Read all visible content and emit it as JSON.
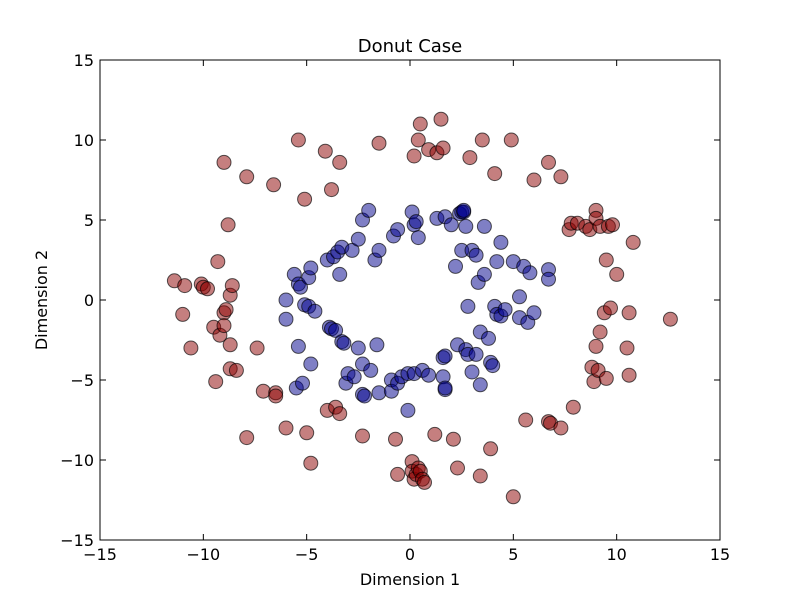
{
  "chart_data": {
    "type": "scatter",
    "title": "Donut Case",
    "xlabel": "Dimension 1",
    "ylabel": "Dimension 2",
    "xlim": [
      -15,
      15
    ],
    "ylim": [
      -15,
      15
    ],
    "xticks": [
      -15,
      -10,
      -5,
      0,
      5,
      10,
      15
    ],
    "yticks": [
      -15,
      -10,
      -5,
      0,
      5,
      10,
      15
    ],
    "xtick_labels": [
      "−15",
      "−10",
      "−5",
      "0",
      "5",
      "10",
      "15"
    ],
    "ytick_labels": [
      "−15",
      "−10",
      "−5",
      "0",
      "5",
      "10",
      "15"
    ],
    "grid": false,
    "series": [
      {
        "color": "#8b0000",
        "points": [
          [
            -11.4,
            1.2
          ],
          [
            -10.9,
            0.9
          ],
          [
            -11.0,
            -0.9
          ],
          [
            -10.6,
            -3.0
          ],
          [
            -10.1,
            1.0
          ],
          [
            -10.0,
            0.8
          ],
          [
            -9.8,
            0.7
          ],
          [
            -9.5,
            -1.7
          ],
          [
            -9.4,
            -5.1
          ],
          [
            -9.3,
            2.4
          ],
          [
            -9.2,
            -2.2
          ],
          [
            -9.0,
            -0.8
          ],
          [
            -9.0,
            -1.6
          ],
          [
            -8.9,
            -0.6
          ],
          [
            -8.8,
            4.7
          ],
          [
            -8.7,
            0.3
          ],
          [
            -8.6,
            0.9
          ],
          [
            -8.7,
            -2.8
          ],
          [
            -8.7,
            -4.3
          ],
          [
            -8.4,
            -4.4
          ],
          [
            -9.0,
            8.6
          ],
          [
            -7.9,
            7.7
          ],
          [
            -7.9,
            -8.6
          ],
          [
            -7.4,
            -3.0
          ],
          [
            -7.1,
            -5.7
          ],
          [
            -6.6,
            7.2
          ],
          [
            -6.5,
            -5.8
          ],
          [
            -6.5,
            -6.0
          ],
          [
            -6.0,
            -8.0
          ],
          [
            -5.4,
            10.0
          ],
          [
            -5.1,
            6.3
          ],
          [
            -5.0,
            -8.3
          ],
          [
            -4.8,
            -10.2
          ],
          [
            -4.1,
            9.3
          ],
          [
            -4.0,
            -6.9
          ],
          [
            -3.8,
            6.9
          ],
          [
            -3.6,
            -6.7
          ],
          [
            -3.4,
            8.6
          ],
          [
            -3.4,
            -7.1
          ],
          [
            -2.3,
            -8.5
          ],
          [
            -1.5,
            9.8
          ],
          [
            -0.7,
            -8.7
          ],
          [
            -0.6,
            -10.9
          ],
          [
            0.1,
            -10.1
          ],
          [
            0.1,
            -10.7
          ],
          [
            0.2,
            -11.2
          ],
          [
            0.3,
            -10.9
          ],
          [
            0.4,
            -10.5
          ],
          [
            0.5,
            -10.7
          ],
          [
            0.6,
            -11.2
          ],
          [
            0.7,
            -11.4
          ],
          [
            0.2,
            9.0
          ],
          [
            0.4,
            10.0
          ],
          [
            0.5,
            11.0
          ],
          [
            0.9,
            9.4
          ],
          [
            1.2,
            -8.4
          ],
          [
            1.3,
            9.2
          ],
          [
            1.5,
            11.3
          ],
          [
            1.6,
            9.5
          ],
          [
            2.1,
            -8.7
          ],
          [
            2.3,
            -10.5
          ],
          [
            2.9,
            8.9
          ],
          [
            3.4,
            -11.0
          ],
          [
            3.5,
            10.0
          ],
          [
            3.9,
            -9.3
          ],
          [
            4.1,
            7.9
          ],
          [
            4.9,
            10.0
          ],
          [
            5.0,
            -12.3
          ],
          [
            5.6,
            -7.5
          ],
          [
            6.0,
            7.5
          ],
          [
            6.7,
            8.6
          ],
          [
            6.7,
            -7.6
          ],
          [
            6.8,
            -7.7
          ],
          [
            7.3,
            7.7
          ],
          [
            7.3,
            -8.0
          ],
          [
            7.7,
            4.4
          ],
          [
            7.8,
            4.8
          ],
          [
            7.9,
            -6.7
          ],
          [
            8.1,
            4.8
          ],
          [
            8.5,
            4.6
          ],
          [
            8.7,
            4.4
          ],
          [
            8.8,
            -4.2
          ],
          [
            8.9,
            -5.1
          ],
          [
            9.0,
            -2.9
          ],
          [
            9.0,
            5.6
          ],
          [
            9.0,
            5.1
          ],
          [
            9.1,
            -4.4
          ],
          [
            9.2,
            4.6
          ],
          [
            9.2,
            -2.0
          ],
          [
            9.4,
            -0.8
          ],
          [
            9.5,
            -4.9
          ],
          [
            9.6,
            4.6
          ],
          [
            9.7,
            -0.5
          ],
          [
            9.5,
            2.5
          ],
          [
            9.8,
            4.7
          ],
          [
            10.0,
            1.6
          ],
          [
            10.5,
            -3.0
          ],
          [
            10.6,
            -4.7
          ],
          [
            10.6,
            -0.8
          ],
          [
            10.8,
            3.6
          ],
          [
            12.6,
            -1.2
          ]
        ]
      },
      {
        "color": "#00008b",
        "points": [
          [
            -6.0,
            0.0
          ],
          [
            -6.0,
            -1.2
          ],
          [
            -5.6,
            1.6
          ],
          [
            -5.5,
            -5.5
          ],
          [
            -5.4,
            1.0
          ],
          [
            -5.4,
            -2.9
          ],
          [
            -5.3,
            0.8
          ],
          [
            -5.2,
            -5.2
          ],
          [
            -5.1,
            -0.3
          ],
          [
            -4.9,
            -0.4
          ],
          [
            -4.9,
            1.4
          ],
          [
            -4.8,
            -4.0
          ],
          [
            -4.8,
            2.0
          ],
          [
            -4.6,
            -0.7
          ],
          [
            -4.0,
            2.5
          ],
          [
            -3.9,
            -1.7
          ],
          [
            -3.8,
            -1.8
          ],
          [
            -3.7,
            2.7
          ],
          [
            -3.6,
            -1.9
          ],
          [
            -3.5,
            3.0
          ],
          [
            -3.4,
            1.6
          ],
          [
            -3.3,
            3.3
          ],
          [
            -3.3,
            -2.6
          ],
          [
            -3.2,
            -2.7
          ],
          [
            -3.1,
            -5.2
          ],
          [
            -3.0,
            -4.6
          ],
          [
            -2.8,
            3.1
          ],
          [
            -2.7,
            -4.8
          ],
          [
            -2.5,
            -3.0
          ],
          [
            -2.5,
            3.8
          ],
          [
            -2.3,
            5.0
          ],
          [
            -2.3,
            -5.9
          ],
          [
            -2.3,
            -4.0
          ],
          [
            -2.2,
            -6.0
          ],
          [
            -2.0,
            5.6
          ],
          [
            -1.9,
            -4.4
          ],
          [
            -1.7,
            2.5
          ],
          [
            -1.6,
            -2.8
          ],
          [
            -1.5,
            -5.8
          ],
          [
            -1.5,
            3.1
          ],
          [
            -0.9,
            -5.0
          ],
          [
            -0.9,
            -5.7
          ],
          [
            -0.8,
            4.0
          ],
          [
            -0.6,
            4.4
          ],
          [
            -0.6,
            -5.2
          ],
          [
            -0.4,
            -4.8
          ],
          [
            -0.1,
            -4.6
          ],
          [
            -0.1,
            -6.9
          ],
          [
            0.1,
            5.5
          ],
          [
            0.2,
            -4.6
          ],
          [
            0.2,
            4.7
          ],
          [
            0.3,
            4.9
          ],
          [
            0.4,
            3.9
          ],
          [
            0.6,
            -4.4
          ],
          [
            0.9,
            -4.7
          ],
          [
            1.3,
            5.1
          ],
          [
            1.6,
            -3.6
          ],
          [
            1.6,
            -4.8
          ],
          [
            1.7,
            -5.6
          ],
          [
            1.7,
            5.2
          ],
          [
            1.7,
            -3.5
          ],
          [
            1.7,
            -5.5
          ],
          [
            2.0,
            4.7
          ],
          [
            2.2,
            2.1
          ],
          [
            2.3,
            -2.8
          ],
          [
            2.4,
            5.4
          ],
          [
            2.5,
            5.5
          ],
          [
            2.5,
            3.1
          ],
          [
            2.6,
            5.5
          ],
          [
            2.6,
            5.6
          ],
          [
            2.7,
            -3.1
          ],
          [
            2.7,
            4.6
          ],
          [
            2.8,
            -0.4
          ],
          [
            2.8,
            -3.4
          ],
          [
            3.0,
            3.1
          ],
          [
            3.0,
            -4.5
          ],
          [
            3.2,
            2.8
          ],
          [
            3.2,
            -3.4
          ],
          [
            3.3,
            1.1
          ],
          [
            3.4,
            -5.3
          ],
          [
            3.4,
            -2.0
          ],
          [
            3.6,
            1.6
          ],
          [
            3.6,
            4.6
          ],
          [
            3.8,
            -2.4
          ],
          [
            3.9,
            -3.9
          ],
          [
            4.0,
            -4.1
          ],
          [
            4.1,
            -0.4
          ],
          [
            4.2,
            2.4
          ],
          [
            4.2,
            -0.9
          ],
          [
            4.4,
            -1.0
          ],
          [
            4.4,
            3.6
          ],
          [
            4.6,
            -0.6
          ],
          [
            5.0,
            2.4
          ],
          [
            5.3,
            -1.1
          ],
          [
            5.3,
            0.2
          ],
          [
            5.5,
            2.1
          ],
          [
            5.7,
            -1.4
          ],
          [
            5.8,
            1.7
          ],
          [
            6.0,
            -0.8
          ],
          [
            6.7,
            1.9
          ],
          [
            6.7,
            1.3
          ]
        ]
      }
    ]
  }
}
